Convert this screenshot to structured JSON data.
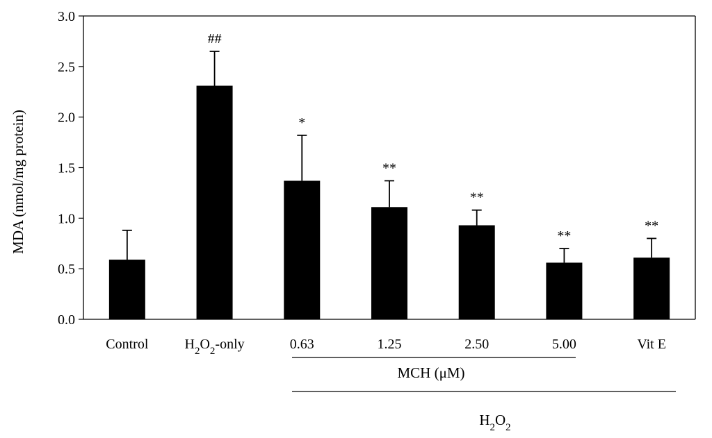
{
  "chart_data": {
    "type": "bar",
    "title": "",
    "ylabel": "MDA (nmol/mg protein)",
    "ylim": [
      0,
      3.0
    ],
    "yticks": [
      "0.0",
      "0.5",
      "1.0",
      "1.5",
      "2.0",
      "2.5",
      "3.0"
    ],
    "grid": false,
    "categories": [
      "Control",
      "H2O2-only",
      "0.63",
      "1.25",
      "2.50",
      "5.00",
      "Vit E"
    ],
    "values": [
      0.59,
      2.31,
      1.37,
      1.11,
      0.93,
      0.56,
      0.61
    ],
    "error_upper": [
      0.29,
      0.34,
      0.45,
      0.26,
      0.15,
      0.14,
      0.19
    ],
    "annotations": [
      "",
      "##",
      "*",
      "**",
      "**",
      "**",
      "**"
    ],
    "bar_color": "#000000",
    "group_labels": {
      "mch": "MCH (μM)",
      "h2o2": "H2O2"
    }
  }
}
